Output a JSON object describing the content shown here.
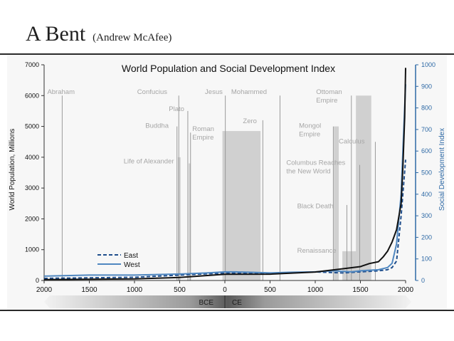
{
  "slide": {
    "title": "A Bent",
    "subtitle": "(Andrew McAfee)"
  },
  "colors": {
    "east": "#1f4e8c",
    "west": "#4f87c0",
    "population": "#111111",
    "event_line": "#9a9a9a",
    "bar": "#d0d0d0",
    "label": "#a6a6a6",
    "axis_right": "#2f6aa6"
  },
  "chart_data": {
    "type": "line",
    "title": "World Population and Social Development Index",
    "ylabel": "World Population, Millions",
    "ylabel_right": "Social Development Index",
    "xlim": [
      -2000,
      2000
    ],
    "ylim": [
      0,
      7000
    ],
    "ylim_right": [
      0,
      1000
    ],
    "x_ticks": [
      2000,
      1500,
      1000,
      500,
      0,
      500,
      1000,
      1500,
      2000
    ],
    "y_ticks": [
      0,
      1000,
      2000,
      3000,
      4000,
      5000,
      6000,
      7000
    ],
    "y_ticks_right": [
      0,
      100,
      200,
      300,
      400,
      500,
      600,
      700,
      800,
      900,
      1000
    ],
    "era_labels": [
      "BCE",
      "CE"
    ],
    "legend": [
      "East",
      "West"
    ],
    "series": [
      {
        "name": "East",
        "axis": "right",
        "style": "dashed",
        "x": [
          -2000,
          -1000,
          -500,
          0,
          500,
          1000,
          1300,
          1500,
          1700,
          1800,
          1850,
          1900,
          1950,
          2000
        ],
        "y": [
          10,
          15,
          25,
          35,
          32,
          40,
          35,
          40,
          45,
          50,
          60,
          90,
          300,
          560
        ]
      },
      {
        "name": "West",
        "axis": "right",
        "style": "solid",
        "x": [
          -2000,
          -1500,
          -1000,
          -500,
          -200,
          0,
          100,
          300,
          500,
          700,
          1000,
          1200,
          1400,
          1500,
          1700,
          1800,
          1850,
          1900,
          1950,
          2000
        ],
        "y": [
          20,
          25,
          25,
          30,
          35,
          40,
          40,
          38,
          35,
          38,
          40,
          45,
          40,
          45,
          50,
          60,
          80,
          170,
          400,
          910
        ]
      },
      {
        "name": "World Population",
        "axis": "left",
        "style": "solid",
        "x": [
          -2000,
          -1000,
          -500,
          0,
          500,
          1000,
          1300,
          1500,
          1600,
          1700,
          1750,
          1800,
          1850,
          1900,
          1950,
          1970,
          1990,
          2000
        ],
        "y": [
          27,
          50,
          100,
          200,
          205,
          275,
          380,
          450,
          550,
          610,
          760,
          950,
          1250,
          1650,
          2500,
          3700,
          5300,
          6900
        ]
      }
    ],
    "events": [
      {
        "label": "Abraham",
        "x": -1800
      },
      {
        "label": "Confucius",
        "x": -510
      },
      {
        "label": "Plato",
        "x": -410
      },
      {
        "label": "Buddha",
        "x": -530
      },
      {
        "label": "Roman Empire",
        "x": -380
      },
      {
        "label": "Life of Alexander",
        "x": -380
      },
      {
        "label": "Jesus",
        "x": 5
      },
      {
        "label": "Mohammed",
        "x": 610
      },
      {
        "label": "Zero",
        "x": 420
      },
      {
        "label": "Mongol Empire",
        "x": 1200
      },
      {
        "label": "Ottoman Empire",
        "x": 1400
      },
      {
        "label": "Columbus Reaches the New World",
        "x": 1492
      },
      {
        "label": "Calculus",
        "x": 1665
      },
      {
        "label": "Black Death",
        "x": 1350
      },
      {
        "label": "Renaissance",
        "x": 1400
      }
    ],
    "bars": [
      {
        "label": "Roman Empire",
        "x0": -27,
        "x1": 395,
        "y": 4850
      },
      {
        "label": "Mongol Empire",
        "x0": 1206,
        "x1": 1260,
        "y": 5000
      },
      {
        "label": "Ottoman Empire",
        "x0": 1450,
        "x1": 1620,
        "y": 6000
      },
      {
        "label": "Renaissance",
        "x0": 1300,
        "x1": 1530,
        "y": 950
      },
      {
        "label": "Life of Alexander",
        "x0": -520,
        "x1": -490,
        "y": 4000
      },
      {
        "label": "Life of Alexander",
        "x0": -400,
        "x1": -380,
        "y": 3800
      }
    ]
  }
}
